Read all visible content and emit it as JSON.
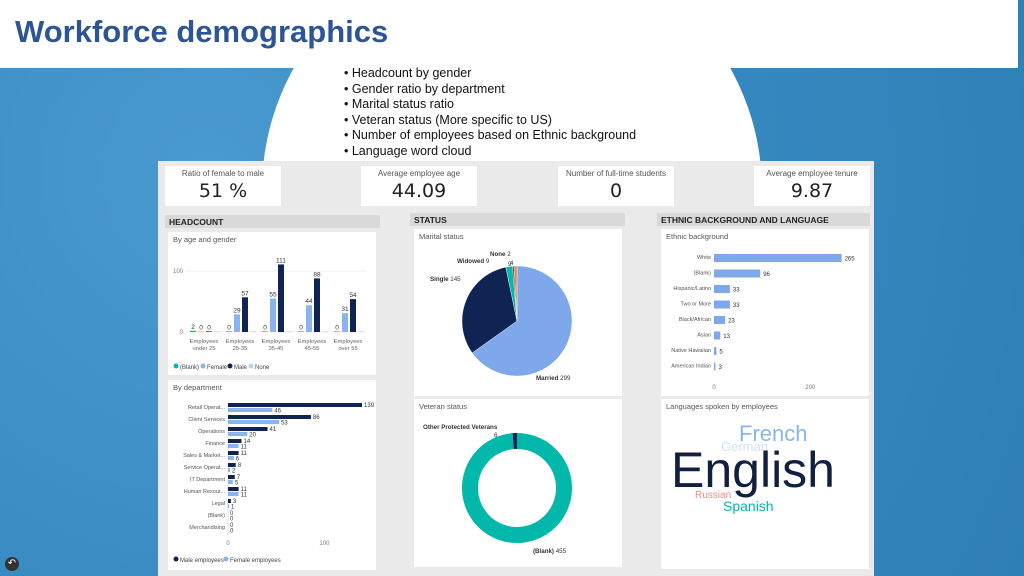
{
  "slide": {
    "title": "Workforce demographics",
    "bullets": [
      "Headcount by gender",
      "Gender ratio by department",
      "Marital status ratio",
      "Veteran status (More specific to US)",
      "Number of employees based on Ethnic background",
      "Language word cloud"
    ]
  },
  "kpis": [
    {
      "label": "Ratio of female to male",
      "value": "51 %"
    },
    {
      "label": "Average employee age",
      "value": "44.09"
    },
    {
      "label": "Number of full-time students",
      "value": "0"
    },
    {
      "label": "Average employee tenure",
      "value": "9.87"
    }
  ],
  "sections": {
    "headcount": "HEADCOUNT",
    "status": "STATUS",
    "ethnic": "ETHNIC BACKGROUND AND LANGUAGE"
  },
  "panels": {
    "age_gender": "By age and gender",
    "department": "By department",
    "marital": "Marital status",
    "veteran": "Veteran status",
    "ethnic": "Ethnic background",
    "languages": "Languages spoken by employees"
  },
  "colors": {
    "blank": "#01b8aa",
    "female": "#8ab4f0",
    "male": "#0f2452",
    "none": "#bcd0ee",
    "bar": "#7ea8eb",
    "accent": "#2d5596"
  },
  "chart_data": [
    {
      "type": "bar",
      "id": "age_gender",
      "categories": [
        "Employees under 25",
        "Employees 25-35",
        "Employees 35-45",
        "Employees 45-55",
        "Employees over 55"
      ],
      "series": [
        {
          "name": "(Blank)",
          "values": [
            2,
            0,
            0,
            0,
            0
          ]
        },
        {
          "name": "Female",
          "values": [
            0,
            29,
            55,
            44,
            31
          ]
        },
        {
          "name": "Male",
          "values": [
            0,
            57,
            111,
            88,
            54
          ]
        },
        {
          "name": "None",
          "values": [
            0,
            0,
            0,
            0,
            0
          ]
        }
      ],
      "y_ticks": [
        0,
        100
      ],
      "ylim": [
        0,
        115
      ]
    },
    {
      "type": "bar",
      "id": "department",
      "orientation": "horizontal",
      "categories": [
        "Retail Operat...",
        "Client Services",
        "Operations",
        "Finance",
        "Sales & Market...",
        "Service Operat...",
        "IT Department",
        "Human Resour...",
        "Legal",
        "(Blank)",
        "Merchandising"
      ],
      "series": [
        {
          "name": "Male employees",
          "values": [
            139,
            86,
            41,
            14,
            11,
            8,
            7,
            11,
            3,
            0,
            0
          ]
        },
        {
          "name": "Female employees",
          "values": [
            46,
            53,
            20,
            11,
            6,
            2,
            5,
            11,
            1,
            0,
            0
          ]
        }
      ],
      "x_ticks": [
        0,
        100
      ],
      "xlim": [
        0,
        140
      ]
    },
    {
      "type": "pie",
      "id": "marital",
      "labels": [
        "Married",
        "Single",
        "Widowed",
        "None",
        "(Blank)"
      ],
      "values": [
        299,
        145,
        9,
        2,
        4
      ]
    },
    {
      "type": "pie",
      "id": "veteran",
      "donut": true,
      "labels": [
        "(Blank)",
        "Other Protected Veterans"
      ],
      "values": [
        455,
        6
      ]
    },
    {
      "type": "bar",
      "id": "ethnic",
      "orientation": "horizontal",
      "categories": [
        "White",
        "(Blank)",
        "Hispanic/Latino",
        "Two or More",
        "Black/African",
        "Asian",
        "Native Hawaiian",
        "American Indian"
      ],
      "values": [
        265,
        96,
        33,
        33,
        23,
        13,
        5,
        3
      ],
      "x_ticks": [
        0,
        200
      ],
      "xlim": [
        0,
        270
      ]
    }
  ],
  "word_cloud": [
    {
      "word": "English",
      "color": "#10203f"
    },
    {
      "word": "French",
      "color": "#8ab4f0"
    },
    {
      "word": "German",
      "color": "#d4dff2"
    },
    {
      "word": "Russian",
      "color": "#f08c80"
    },
    {
      "word": "Spanish",
      "color": "#01b8aa"
    }
  ]
}
